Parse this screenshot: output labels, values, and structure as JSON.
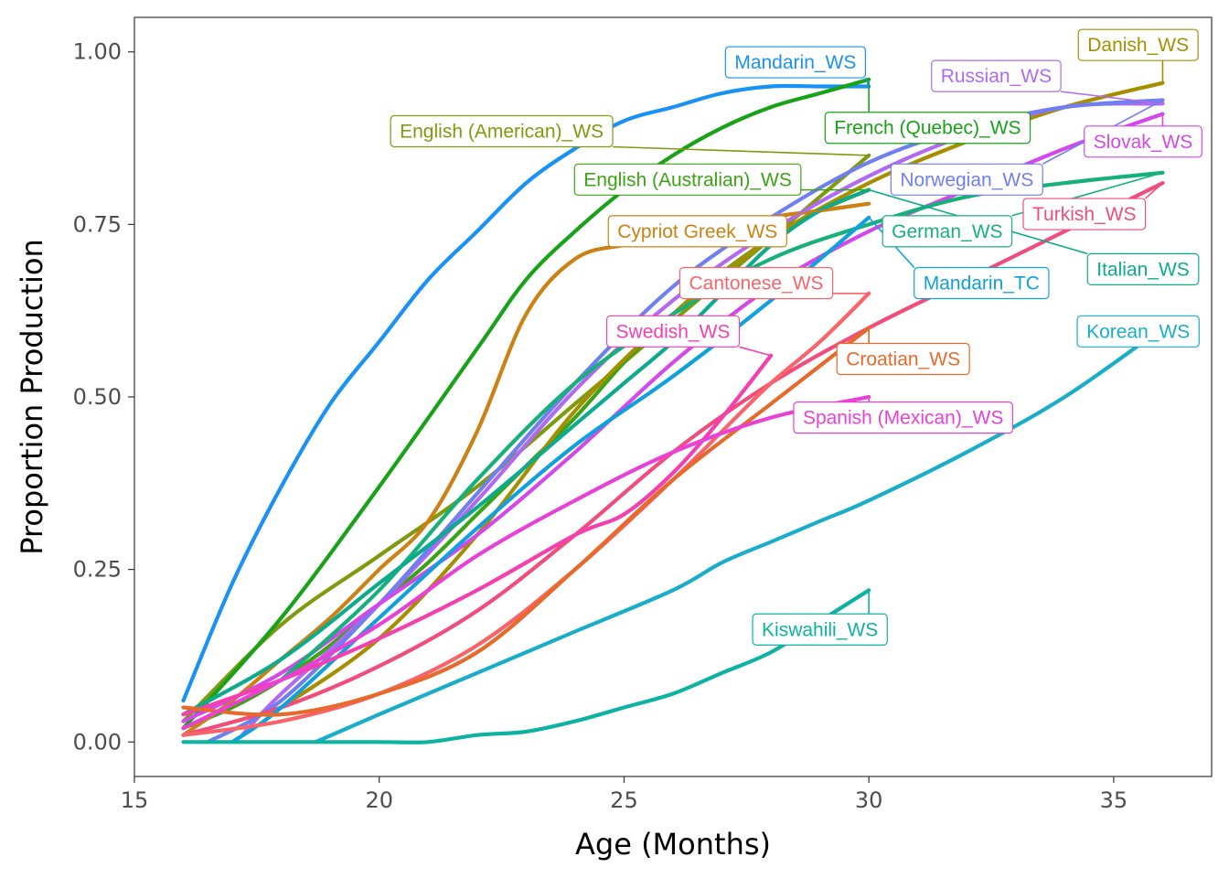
{
  "chart_data": {
    "type": "line",
    "xlabel": "Age (Months)",
    "ylabel": "Proportion Production",
    "xlim": [
      15,
      37
    ],
    "ylim": [
      -0.05,
      1.05
    ],
    "xticks": [
      15,
      20,
      25,
      30,
      35
    ],
    "yticks": [
      0.0,
      0.25,
      0.5,
      0.75,
      1.0
    ],
    "ytick_labels": [
      "0.00",
      "0.25",
      "0.50",
      "0.75",
      "1.00"
    ],
    "grid": false,
    "legend": "none",
    "series": [
      {
        "name": "Mandarin_WS",
        "color": "#1A91F4",
        "x": [
          16,
          17,
          18,
          19,
          20,
          21,
          22,
          23,
          24,
          25,
          26,
          27,
          28,
          29,
          30
        ],
        "values": [
          0.06,
          0.23,
          0.37,
          0.49,
          0.58,
          0.67,
          0.74,
          0.81,
          0.86,
          0.9,
          0.92,
          0.94,
          0.95,
          0.95,
          0.95
        ],
        "label": {
          "x": 28.5,
          "y": 0.985
        }
      },
      {
        "name": "English (American)_WS",
        "color": "#7F9A0E",
        "x": [
          16,
          18,
          20,
          22,
          24,
          26,
          28,
          30
        ],
        "values": [
          0.03,
          0.17,
          0.27,
          0.37,
          0.49,
          0.61,
          0.73,
          0.85
        ],
        "label": {
          "x": 22.5,
          "y": 0.885
        }
      },
      {
        "name": "French (Quebec)_WS",
        "color": "#18A218",
        "x": [
          16,
          18,
          20,
          22,
          23,
          24,
          25,
          26,
          27,
          28,
          29,
          30
        ],
        "values": [
          0.02,
          0.18,
          0.37,
          0.57,
          0.67,
          0.74,
          0.8,
          0.85,
          0.89,
          0.92,
          0.94,
          0.96
        ],
        "label": {
          "x": 31.2,
          "y": 0.89
        }
      },
      {
        "name": "English (Australian)_WS",
        "color": "#3CA316",
        "x": [
          16,
          17,
          18,
          19,
          20,
          21,
          22,
          23,
          24,
          25,
          26,
          27,
          28,
          29,
          30
        ],
        "values": [
          0.02,
          0.05,
          0.09,
          0.14,
          0.2,
          0.26,
          0.33,
          0.4,
          0.47,
          0.55,
          0.62,
          0.68,
          0.73,
          0.77,
          0.8
        ],
        "label": {
          "x": 26.3,
          "y": 0.815
        }
      },
      {
        "name": "Cypriot Greek_WS",
        "color": "#CB8114",
        "x": [
          16,
          17,
          18,
          19,
          20,
          21,
          22,
          23,
          24,
          25,
          26,
          27,
          28,
          29,
          30
        ],
        "values": [
          0.01,
          0.06,
          0.12,
          0.18,
          0.25,
          0.32,
          0.45,
          0.62,
          0.7,
          0.72,
          0.73,
          0.74,
          0.76,
          0.77,
          0.78
        ],
        "label": {
          "x": 26.5,
          "y": 0.74
        }
      },
      {
        "name": "Danish_WS",
        "color": "#A58F00",
        "x": [
          18,
          20,
          22,
          24,
          26,
          28,
          30,
          32,
          34,
          36
        ],
        "values": [
          0.05,
          0.15,
          0.3,
          0.48,
          0.62,
          0.73,
          0.81,
          0.87,
          0.92,
          0.955
        ],
        "label": {
          "x": 35.5,
          "y": 1.01
        }
      },
      {
        "name": "Russian_WS",
        "color": "#B069F0",
        "x": [
          17.2,
          18,
          20,
          22,
          24,
          26,
          28,
          30,
          32,
          34,
          36
        ],
        "values": [
          0.01,
          0.07,
          0.2,
          0.35,
          0.51,
          0.64,
          0.74,
          0.82,
          0.88,
          0.92,
          0.925
        ],
        "label": {
          "x": 32.6,
          "y": 0.965
        }
      },
      {
        "name": "Norwegian_WS",
        "color": "#6F7FF0",
        "x": [
          16.5,
          18,
          20,
          22,
          24,
          26,
          28,
          30,
          32,
          34,
          36
        ],
        "values": [
          0.0,
          0.06,
          0.2,
          0.36,
          0.52,
          0.66,
          0.76,
          0.84,
          0.89,
          0.92,
          0.93
        ],
        "label": {
          "x": 32.0,
          "y": 0.815
        }
      },
      {
        "name": "Slovak_WS",
        "color": "#D248E8",
        "x": [
          16,
          18,
          20,
          22,
          24,
          26,
          28,
          30,
          32,
          34,
          36
        ],
        "values": [
          0.03,
          0.1,
          0.2,
          0.3,
          0.42,
          0.55,
          0.66,
          0.74,
          0.8,
          0.86,
          0.91
        ],
        "label": {
          "x": 35.6,
          "y": 0.87
        }
      },
      {
        "name": "German_WS",
        "color": "#17B07A",
        "x": [
          18,
          20,
          22,
          24,
          26,
          28,
          30,
          32,
          34,
          36
        ],
        "values": [
          0.09,
          0.22,
          0.38,
          0.52,
          0.62,
          0.7,
          0.75,
          0.79,
          0.81,
          0.825
        ],
        "label": {
          "x": 31.6,
          "y": 0.74
        }
      },
      {
        "name": "Turkish_WS",
        "color": "#F04C7C",
        "x": [
          16,
          18,
          20,
          22,
          24,
          26,
          28,
          30,
          32,
          34,
          36
        ],
        "values": [
          0.01,
          0.05,
          0.11,
          0.19,
          0.3,
          0.42,
          0.52,
          0.6,
          0.67,
          0.74,
          0.81
        ],
        "label": {
          "x": 34.4,
          "y": 0.765
        }
      },
      {
        "name": "Mandarin_TC",
        "color": "#10A0DC",
        "x": [
          17,
          18,
          20,
          22,
          24,
          26,
          28,
          30
        ],
        "values": [
          0.0,
          0.05,
          0.18,
          0.31,
          0.43,
          0.53,
          0.64,
          0.76
        ],
        "label": {
          "x": 32.3,
          "y": 0.665
        }
      },
      {
        "name": "Italian_WS",
        "color": "#0DAA8E",
        "x": [
          16,
          18,
          20,
          22,
          24,
          25,
          26,
          27,
          28,
          29,
          30
        ],
        "values": [
          0.04,
          0.12,
          0.23,
          0.34,
          0.46,
          0.52,
          0.58,
          0.65,
          0.72,
          0.77,
          0.8
        ],
        "label": {
          "x": 35.6,
          "y": 0.685
        }
      },
      {
        "name": "Cantonese_WS",
        "color": "#F8646A",
        "x": [
          16,
          18,
          20,
          22,
          24,
          26,
          27,
          28,
          29,
          30
        ],
        "values": [
          0.01,
          0.03,
          0.07,
          0.14,
          0.25,
          0.38,
          0.45,
          0.52,
          0.58,
          0.65
        ],
        "label": {
          "x": 27.7,
          "y": 0.665
        }
      },
      {
        "name": "Korean_WS",
        "color": "#1AADC8",
        "x": [
          18.7,
          20,
          22,
          24,
          26,
          27,
          28,
          29,
          30,
          32,
          34,
          36
        ],
        "values": [
          0.0,
          0.04,
          0.1,
          0.16,
          0.22,
          0.26,
          0.29,
          0.32,
          0.35,
          0.42,
          0.5,
          0.6
        ],
        "label": {
          "x": 35.5,
          "y": 0.595
        }
      },
      {
        "name": "Swedish_WS",
        "color": "#F43FAE",
        "x": [
          16,
          18,
          20,
          22,
          24,
          25,
          26,
          27,
          28
        ],
        "values": [
          0.04,
          0.09,
          0.15,
          0.22,
          0.3,
          0.33,
          0.39,
          0.47,
          0.56
        ],
        "label": {
          "x": 26.0,
          "y": 0.595
        }
      },
      {
        "name": "Croatian_WS",
        "color": "#E56A2C",
        "x": [
          16,
          18,
          20,
          22,
          24,
          26,
          28,
          30
        ],
        "values": [
          0.05,
          0.04,
          0.07,
          0.13,
          0.25,
          0.38,
          0.49,
          0.6
        ],
        "label": {
          "x": 30.7,
          "y": 0.555
        }
      },
      {
        "name": "Spanish (Mexican)_WS",
        "color": "#E940D6",
        "x": [
          16,
          18,
          20,
          22,
          24,
          26,
          28,
          30
        ],
        "values": [
          0.02,
          0.09,
          0.17,
          0.27,
          0.35,
          0.42,
          0.47,
          0.5
        ],
        "label": {
          "x": 30.7,
          "y": 0.47
        }
      },
      {
        "name": "Kiswahili_WS",
        "color": "#0DB2A2",
        "x": [
          16,
          18,
          20,
          21,
          22,
          23,
          24,
          25,
          26,
          27,
          28,
          29,
          30
        ],
        "values": [
          0.0,
          0.0,
          0.0,
          0.0,
          0.01,
          0.015,
          0.03,
          0.05,
          0.07,
          0.1,
          0.13,
          0.175,
          0.22
        ],
        "label": {
          "x": 29.0,
          "y": 0.163
        }
      }
    ]
  }
}
